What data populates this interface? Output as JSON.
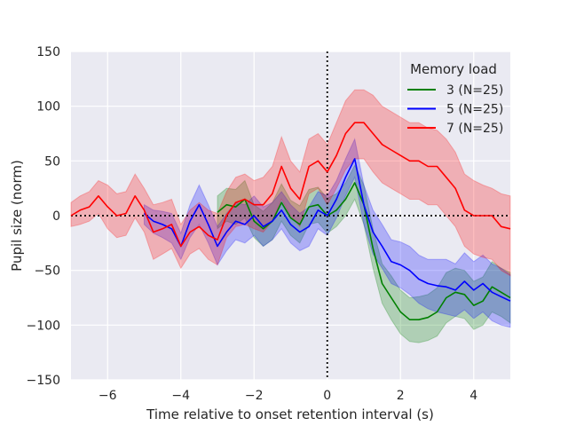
{
  "chart_data": {
    "type": "line",
    "xlabel": "Time relative to onset retention interval (s)",
    "ylabel": "Pupil size (norm)",
    "xlim": [
      -7,
      5
    ],
    "ylim": [
      -150,
      150
    ],
    "xticks": [
      -6,
      -4,
      -2,
      0,
      2,
      4
    ],
    "yticks": [
      -150,
      -100,
      -50,
      0,
      50,
      100,
      150
    ],
    "xtick_labels": [
      "−6",
      "−4",
      "−2",
      "0",
      "2",
      "4"
    ],
    "ytick_labels": [
      "−150",
      "−100",
      "−50",
      "0",
      "50",
      "100",
      "150"
    ],
    "grid": true,
    "background": "#eaeaf2",
    "reference_lines": [
      {
        "orientation": "horizontal",
        "value": 0,
        "style": "dotted",
        "color": "#000000"
      },
      {
        "orientation": "vertical",
        "value": 0,
        "style": "dotted",
        "color": "#000000"
      }
    ],
    "legend": {
      "title": "Memory load",
      "placement": "top-right"
    },
    "series": [
      {
        "name": "3 (N=25)",
        "color": "#008000",
        "x": [
          -3,
          -2.75,
          -2.5,
          -2.25,
          -2,
          -1.75,
          -1.5,
          -1.25,
          -1,
          -0.75,
          -0.5,
          -0.25,
          0,
          0.25,
          0.5,
          0.75,
          1,
          1.25,
          1.5,
          1.75,
          2,
          2.25,
          2.5,
          2.75,
          3,
          3.25,
          3.5,
          3.75,
          4,
          4.25,
          4.5,
          4.75,
          5
        ],
        "y": [
          3,
          10,
          8,
          15,
          -5,
          -12,
          -5,
          12,
          -2,
          -8,
          8,
          10,
          0,
          5,
          15,
          30,
          10,
          -30,
          -62,
          -75,
          -88,
          -95,
          -95,
          -93,
          -88,
          -75,
          -70,
          -72,
          -82,
          -78,
          -65,
          -70,
          -75
        ],
        "lower": [
          -12,
          -5,
          -8,
          -2,
          -20,
          -28,
          -22,
          -5,
          -18,
          -25,
          -8,
          -6,
          -16,
          -10,
          0,
          15,
          -8,
          -48,
          -80,
          -95,
          -108,
          -115,
          -116,
          -114,
          -110,
          -98,
          -92,
          -94,
          -104,
          -100,
          -88,
          -92,
          -98
        ],
        "upper": [
          18,
          25,
          24,
          32,
          10,
          4,
          12,
          29,
          14,
          9,
          24,
          26,
          16,
          20,
          30,
          46,
          28,
          -12,
          -44,
          -55,
          -68,
          -75,
          -74,
          -72,
          -66,
          -52,
          -48,
          -50,
          -60,
          -56,
          -42,
          -48,
          -52
        ]
      },
      {
        "name": "5 (N=25)",
        "color": "#0000ff",
        "x": [
          -5,
          -4.75,
          -4.5,
          -4.25,
          -4,
          -3.75,
          -3.5,
          -3.25,
          -3,
          -2.75,
          -2.5,
          -2.25,
          -2,
          -1.75,
          -1.5,
          -1.25,
          -1,
          -0.75,
          -0.5,
          -0.25,
          0,
          0.25,
          0.5,
          0.75,
          1,
          1.25,
          1.5,
          1.75,
          2,
          2.25,
          2.5,
          2.75,
          3,
          3.25,
          3.5,
          3.75,
          4,
          4.25,
          4.5,
          4.75,
          5
        ],
        "y": [
          2,
          -5,
          -8,
          -12,
          -28,
          -5,
          10,
          -8,
          -28,
          -15,
          -5,
          -8,
          0,
          -10,
          -5,
          5,
          -8,
          -15,
          -10,
          5,
          0,
          15,
          35,
          52,
          10,
          -15,
          -28,
          -42,
          -45,
          -50,
          -58,
          -62,
          -64,
          -65,
          -68,
          -60,
          -68,
          -62,
          -70,
          -74,
          -78
        ],
        "lower": [
          -8,
          -16,
          -20,
          -25,
          -40,
          -20,
          -8,
          -25,
          -45,
          -32,
          -22,
          -25,
          -18,
          -28,
          -22,
          -12,
          -25,
          -32,
          -28,
          -12,
          -18,
          -2,
          18,
          35,
          -8,
          -35,
          -48,
          -62,
          -66,
          -72,
          -80,
          -85,
          -88,
          -90,
          -92,
          -86,
          -94,
          -88,
          -96,
          -100,
          -102
        ],
        "upper": [
          10,
          5,
          4,
          2,
          -16,
          10,
          28,
          10,
          -10,
          2,
          12,
          10,
          18,
          8,
          12,
          22,
          10,
          2,
          8,
          22,
          18,
          32,
          52,
          70,
          28,
          5,
          -8,
          -22,
          -24,
          -28,
          -36,
          -40,
          -40,
          -40,
          -44,
          -34,
          -42,
          -36,
          -44,
          -48,
          -54
        ]
      },
      {
        "name": "7 (N=25)",
        "color": "#ff0000",
        "x": [
          -7,
          -6.75,
          -6.5,
          -6.25,
          -6,
          -5.75,
          -5.5,
          -5.25,
          -5,
          -4.75,
          -4.5,
          -4.25,
          -4,
          -3.75,
          -3.5,
          -3.25,
          -3,
          -2.75,
          -2.5,
          -2.25,
          -2,
          -1.75,
          -1.5,
          -1.25,
          -1,
          -0.75,
          -0.5,
          -0.25,
          0,
          0.25,
          0.5,
          0.75,
          1,
          1.25,
          1.5,
          1.75,
          2,
          2.25,
          2.5,
          2.75,
          3,
          3.25,
          3.5,
          3.75,
          4,
          4.25,
          4.5,
          4.75,
          5
        ],
        "y": [
          0,
          5,
          8,
          18,
          8,
          0,
          2,
          18,
          5,
          -15,
          -12,
          -8,
          -28,
          -15,
          -10,
          -18,
          -22,
          0,
          12,
          15,
          10,
          10,
          20,
          45,
          25,
          15,
          45,
          50,
          40,
          55,
          75,
          85,
          85,
          75,
          65,
          60,
          55,
          50,
          50,
          45,
          45,
          35,
          25,
          5,
          0,
          0,
          0,
          -10,
          -12
        ],
        "lower": [
          -10,
          -8,
          -5,
          2,
          -12,
          -20,
          -18,
          -2,
          -15,
          -40,
          -35,
          -30,
          -48,
          -35,
          -30,
          -40,
          -45,
          -20,
          -10,
          -8,
          -12,
          -15,
          -5,
          15,
          0,
          -10,
          20,
          25,
          10,
          25,
          42,
          52,
          52,
          40,
          30,
          25,
          20,
          15,
          15,
          10,
          10,
          0,
          -10,
          -28,
          -35,
          -38,
          -40,
          -50,
          -55
        ],
        "upper": [
          12,
          18,
          22,
          32,
          28,
          20,
          22,
          38,
          25,
          10,
          12,
          15,
          -8,
          5,
          12,
          5,
          2,
          22,
          35,
          38,
          32,
          35,
          45,
          72,
          50,
          40,
          70,
          75,
          65,
          85,
          105,
          115,
          115,
          110,
          100,
          95,
          90,
          85,
          85,
          80,
          78,
          70,
          58,
          38,
          32,
          28,
          25,
          20,
          18
        ]
      }
    ]
  }
}
